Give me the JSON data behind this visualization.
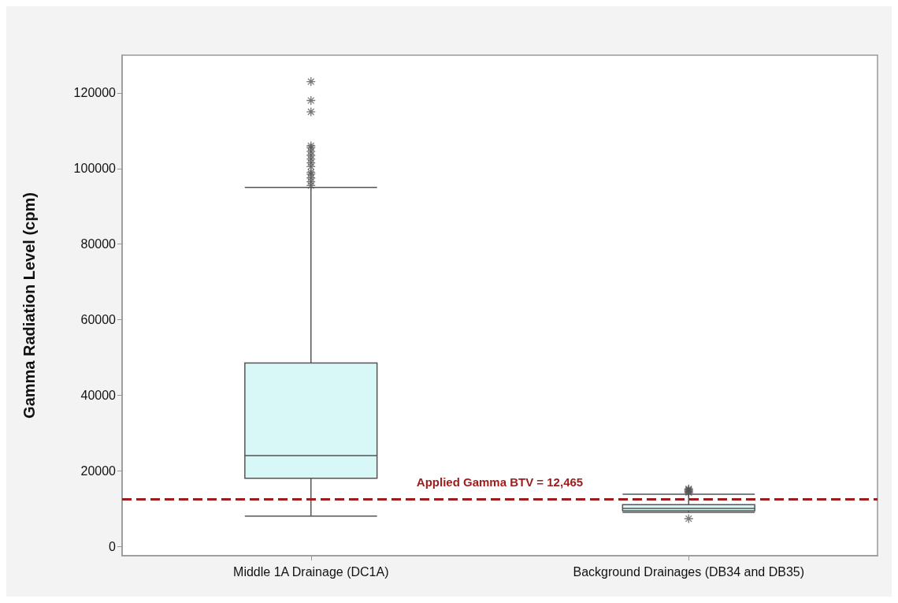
{
  "chart_data": {
    "type": "box",
    "ylabel": "Gamma Radiation Level (cpm)",
    "categories": [
      "Middle 1A Drainage (DC1A)",
      "Background Drainages (DB34 and DB35)"
    ],
    "color": "#d8f7f7",
    "boxes": [
      {
        "low": 8000,
        "q1": 18000,
        "median": 24000,
        "q3": 48500,
        "high": 95000,
        "outliers": [
          95500,
          96500,
          97500,
          98500,
          99000,
          100500,
          101500,
          102500,
          103500,
          104500,
          105500,
          106000,
          115000,
          118000,
          123000
        ]
      },
      {
        "low": 9000,
        "q1": 9400,
        "median": 10000,
        "q3": 11000,
        "high": 13800,
        "outliers": [
          7300,
          14200,
          14500,
          14800,
          15000,
          15200
        ]
      }
    ],
    "ylim": [
      -2500,
      130000
    ],
    "yticks": [
      0,
      20000,
      40000,
      60000,
      80000,
      100000,
      120000
    ],
    "ref_lines": [
      {
        "axis": "y",
        "value": 12465,
        "label": "Applied Gamma BTV = 12,465",
        "color": "#a01c1c",
        "line_style": "dashed"
      }
    ],
    "grid": false,
    "legend": false,
    "marker": "star"
  }
}
